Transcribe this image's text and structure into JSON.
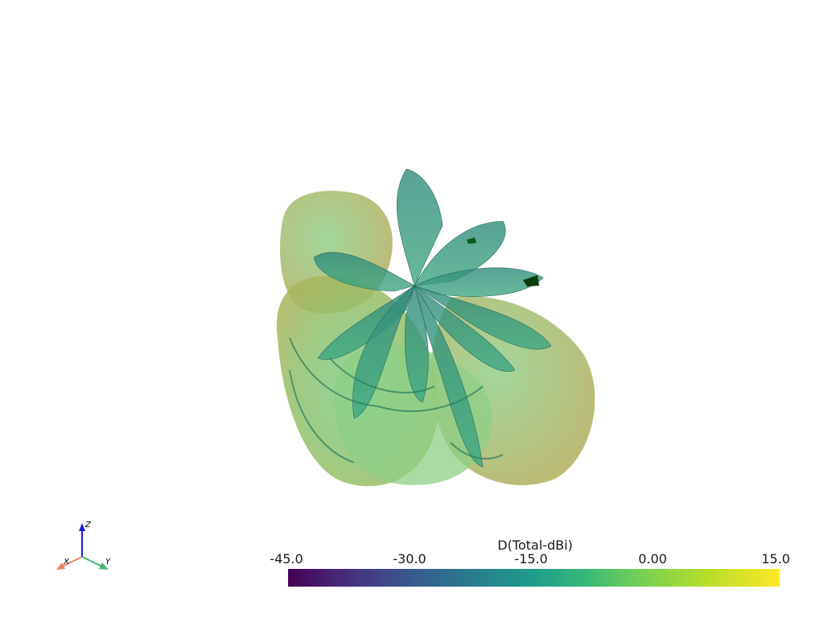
{
  "render": {
    "background": "#ffffff",
    "object": "3D radiation pattern surface (translucent, viridis colormap)"
  },
  "scalar_bar": {
    "title": "D(Total-dBi)",
    "colormap": "viridis",
    "range": [
      -45.0,
      15.0
    ],
    "ticks": [
      "-45.0",
      "-30.0",
      "-15.0",
      "0.00",
      "15.0"
    ]
  },
  "axes_triad": {
    "x_label": "X",
    "y_label": "Y",
    "z_label": "Z",
    "x_color": "#f08060",
    "y_color": "#40b878",
    "z_color": "#1a1ae0"
  }
}
